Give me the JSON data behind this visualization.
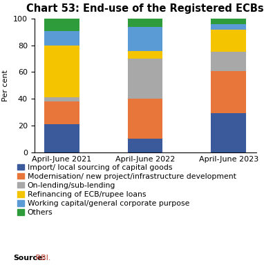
{
  "categories": [
    "April-June 2021",
    "April-June 2022",
    "April-June 2023"
  ],
  "series": [
    {
      "label": "Import/ local sourcing of capital goods",
      "color": "#3a5a9c",
      "values": [
        21,
        10,
        29
      ]
    },
    {
      "label": "Modernisation/ new project/infrastructure development",
      "color": "#e8763a",
      "values": [
        17,
        30,
        32
      ]
    },
    {
      "label": "On-lending/sub-lending",
      "color": "#a8a8a8",
      "values": [
        3,
        30,
        14
      ]
    },
    {
      "label": "Refinancing of ECB/rupee loans",
      "color": "#f5c400",
      "values": [
        39,
        6,
        17
      ]
    },
    {
      "label": "Working capital/general corporate purpose",
      "color": "#5b9bd5",
      "values": [
        11,
        18,
        4
      ]
    },
    {
      "label": "Others",
      "color": "#2e9c3a",
      "values": [
        9,
        6,
        4
      ]
    }
  ],
  "title": "Chart 53: End-use of the Registered ECBs",
  "ylabel": "Per cent",
  "ylim": [
    0,
    100
  ],
  "yticks": [
    0,
    20,
    40,
    60,
    80,
    100
  ],
  "source_bold": "Source:",
  "source_normal": " RBI.",
  "background_color": "#ffffff",
  "bar_width": 0.42,
  "title_fontsize": 10.5,
  "axis_fontsize": 8,
  "legend_fontsize": 7.8,
  "source_fontsize": 7.8
}
